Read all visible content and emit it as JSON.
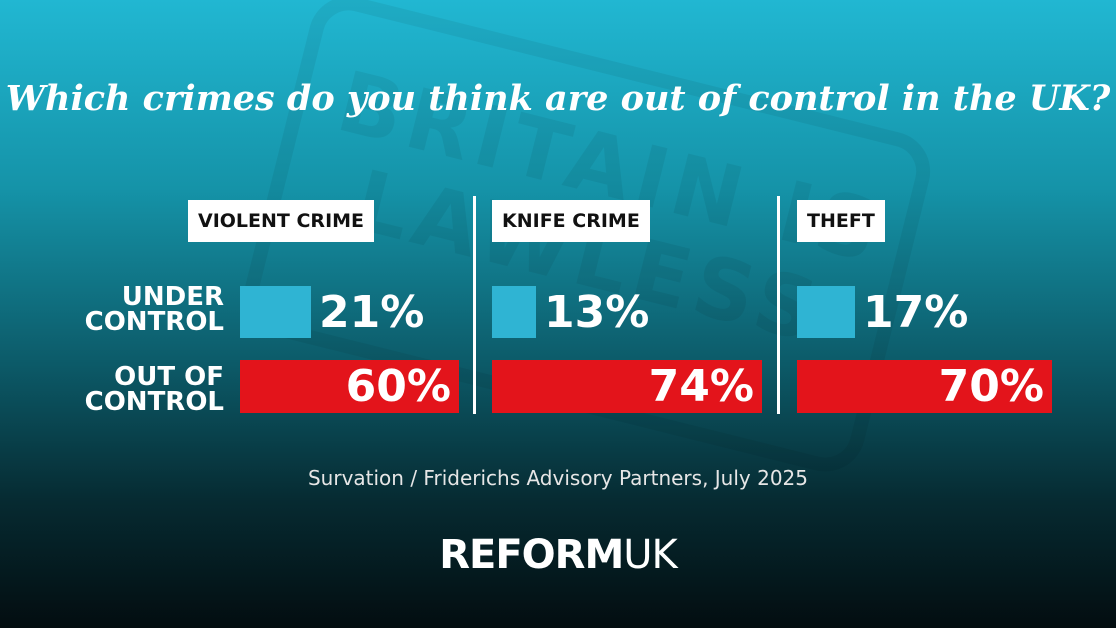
{
  "watermark": "BRITAIN IS LAWLESS",
  "title": "Which crimes do you think are out of control in the UK?",
  "source": "Survation / Friderichs Advisory Partners, July 2025",
  "brand": {
    "bold": "REFORM",
    "light": "UK"
  },
  "colors": {
    "under": "#2fb4d3",
    "out": "#e3141b"
  },
  "chart_data": {
    "type": "bar",
    "title": "Which crimes do you think are out of control in the UK?",
    "row_labels": [
      "UNDER\nCONTROL",
      "OUT OF\nCONTROL"
    ],
    "categories": [
      "VIOLENT CRIME",
      "KNIFE CRIME",
      "THEFT"
    ],
    "series": [
      {
        "name": "UNDER CONTROL",
        "values": [
          21,
          13,
          17
        ],
        "labels": [
          "21%",
          "13%",
          "17%"
        ]
      },
      {
        "name": "OUT OF CONTROL",
        "values": [
          60,
          74,
          70
        ],
        "labels": [
          "60%",
          "74%",
          "70%"
        ]
      }
    ],
    "ylim": [
      0,
      74
    ],
    "grid": false,
    "legend": "left"
  }
}
